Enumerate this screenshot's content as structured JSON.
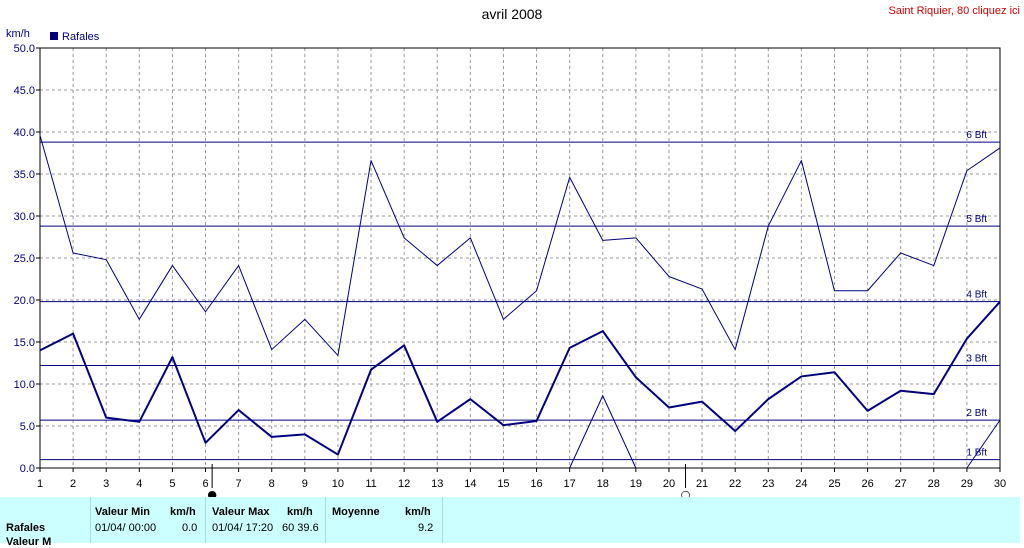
{
  "header": {
    "title": "avril 2008",
    "station_link": "Saint Riquier, 80 cliquez ici",
    "unit": "km/h"
  },
  "legend": {
    "series_label": "Rafales"
  },
  "colors": {
    "series": "#000080",
    "link": "#cc0000",
    "panel": "#ccffff"
  },
  "chart_data": {
    "type": "line",
    "title": "avril 2008",
    "ylabel": "km/h",
    "ylim": [
      0,
      50
    ],
    "yticks": [
      "0.0",
      "5.0",
      "10.0",
      "15.0",
      "20.0",
      "25.0",
      "30.0",
      "35.0",
      "40.0",
      "45.0",
      "50.0"
    ],
    "x": [
      1,
      2,
      3,
      4,
      5,
      6,
      7,
      8,
      9,
      10,
      11,
      12,
      13,
      14,
      15,
      16,
      17,
      18,
      19,
      20,
      21,
      22,
      23,
      24,
      25,
      26,
      27,
      28,
      29,
      30
    ],
    "grid": true,
    "beaufort": [
      {
        "label": "1 Bft",
        "value": 1.0
      },
      {
        "label": "2 Bft",
        "value": 5.7
      },
      {
        "label": "3 Bft",
        "value": 12.2
      },
      {
        "label": "4 Bft",
        "value": 19.8
      },
      {
        "label": "5 Bft",
        "value": 28.8
      },
      {
        "label": "6 Bft",
        "value": 38.8
      }
    ],
    "series": [
      {
        "name": "Rafales",
        "values": [
          39.6,
          25.6,
          24.8,
          17.7,
          24.1,
          18.6,
          24.1,
          14.1,
          17.7,
          13.4,
          36.6,
          27.4,
          24.1,
          27.4,
          17.7,
          21.1,
          34.6,
          27.1,
          27.4,
          22.8,
          21.3,
          14.1,
          28.8,
          36.6,
          21.1,
          21.1,
          25.6,
          24.1,
          35.4,
          38.1
        ]
      },
      {
        "name": "",
        "values": [
          14.0,
          16.0,
          6.0,
          5.5,
          13.2,
          3.0,
          6.9,
          3.7,
          4.0,
          1.6,
          11.7,
          14.6,
          5.5,
          8.2,
          5.1,
          5.6,
          14.3,
          16.3,
          10.8,
          7.2,
          7.9,
          4.4,
          8.2,
          10.9,
          11.4,
          6.8,
          9.2,
          8.8,
          15.4,
          19.8
        ]
      }
    ],
    "low_trace": {
      "x": [
        17,
        18,
        19,
        29,
        30
      ],
      "values": [
        0,
        8.6,
        0,
        0,
        5.7
      ]
    },
    "moon_phases": [
      {
        "day": 6.2,
        "symbol": "●"
      },
      {
        "day": 20.5,
        "symbol": "○"
      }
    ]
  },
  "panel": {
    "row_label": "Rafales",
    "row_label2": "Valeur M",
    "min_header": "Valeur Min",
    "min_unit": "km/h",
    "min_date": "01/04/  00:00",
    "min_value": "0.0",
    "max_header": "Valeur Max",
    "max_unit": "km/h",
    "max_date": "01/04/  17:20",
    "max_value": "60 39.6",
    "avg_header": "Moyenne",
    "avg_unit": "km/h",
    "avg_value": "9.2"
  }
}
